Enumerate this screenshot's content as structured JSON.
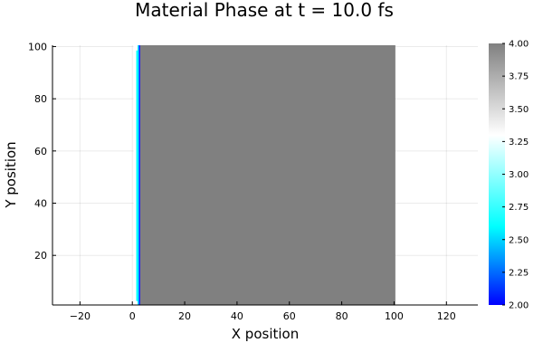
{
  "chart_data": {
    "type": "heatmap",
    "title": "Material Phase at t = 10.0 fs",
    "xlabel": "X position",
    "ylabel": "Y position",
    "xlim": [
      -30.5,
      132
    ],
    "ylim": [
      1,
      100.5
    ],
    "xticks": [
      -20,
      0,
      20,
      40,
      60,
      80,
      100,
      120
    ],
    "yticks": [
      20,
      40,
      60,
      80,
      100
    ],
    "grid": true,
    "legend": "none",
    "colorbar": {
      "range": [
        2.0,
        4.0
      ],
      "ticks": [
        "2.00",
        "2.25",
        "2.50",
        "2.75",
        "3.00",
        "3.25",
        "3.50",
        "3.75",
        "4.00"
      ],
      "colormap": [
        {
          "value": 2.0,
          "color": "#0000ff"
        },
        {
          "value": 2.6,
          "color": "#00ffff"
        },
        {
          "value": 3.3,
          "color": "#ffffff"
        },
        {
          "value": 4.0,
          "color": "#808080"
        }
      ]
    },
    "regions": [
      {
        "x": [
          0.5,
          1.5
        ],
        "y": [
          0.5,
          100.5
        ],
        "value": 3.3
      },
      {
        "x": [
          1.5,
          2.5
        ],
        "y": [
          0.5,
          100.5
        ],
        "value": 2.6
      },
      {
        "x": [
          2.5,
          3.0
        ],
        "y": [
          0.5,
          100.5
        ],
        "value": 2.0
      },
      {
        "x": [
          3.0,
          100.5
        ],
        "y": [
          0.5,
          100.5
        ],
        "value": 4.0
      }
    ],
    "edge_strips": [
      {
        "x": [
          0.5,
          2.0
        ],
        "y": [
          98.5,
          100.5
        ],
        "value": 3.3
      },
      {
        "x": [
          0.5,
          2.0
        ],
        "y": [
          0.5,
          2.5
        ],
        "value": 3.3
      }
    ]
  }
}
